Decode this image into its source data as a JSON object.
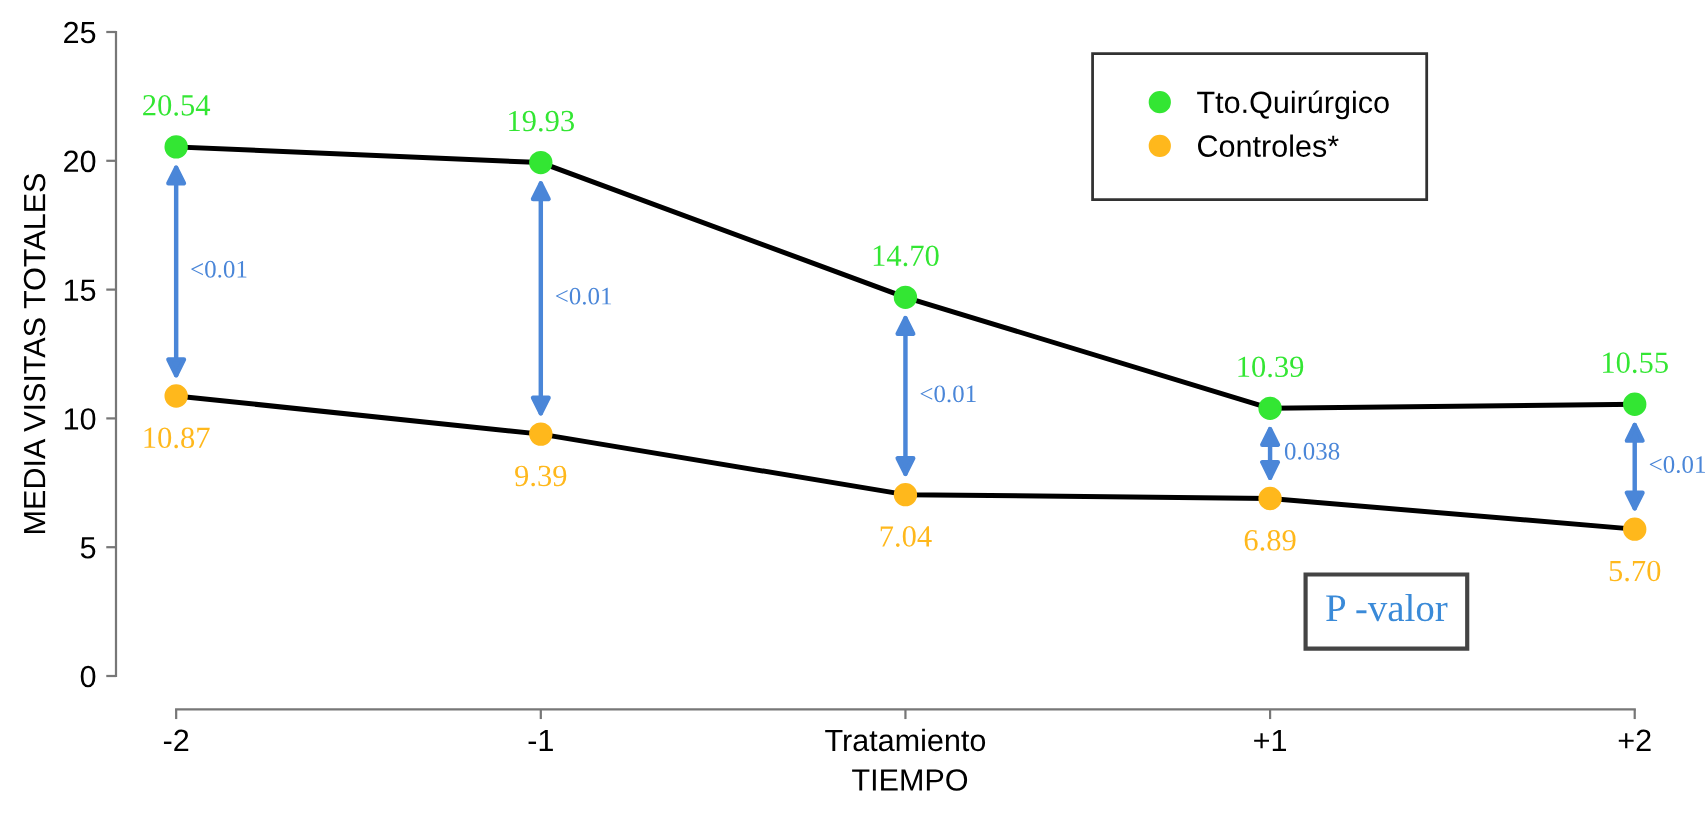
{
  "chart_data": {
    "type": "line",
    "xlabel": "TIEMPO",
    "ylabel": "MEDIA VISITAS TOTALES",
    "categories": [
      "-2",
      "-1",
      "Tratamiento",
      "+1",
      "+2"
    ],
    "series": [
      {
        "name": "Tto.Quirúrgico",
        "color": "#33e633",
        "values": [
          20.54,
          19.93,
          14.7,
          10.39,
          10.55
        ],
        "value_labels": [
          "20.54",
          "19.93",
          "14.70",
          "10.39",
          "10.55"
        ]
      },
      {
        "name": "Controles*",
        "color": "#ffb81c",
        "values": [
          10.87,
          9.39,
          7.04,
          6.89,
          5.7
        ],
        "value_labels": [
          "10.87",
          "9.39",
          "7.04",
          "6.89",
          "5.70"
        ]
      }
    ],
    "ylim": [
      0,
      25
    ],
    "yticks": [
      0,
      5,
      10,
      15,
      20,
      25
    ],
    "grid": false,
    "legend": "top right",
    "marker": "circle",
    "line_style": "solid",
    "annotations": [
      "<0.01",
      "<0.01",
      "<0.01",
      "0.038",
      "<0.01",
      "P -valor"
    ]
  }
}
